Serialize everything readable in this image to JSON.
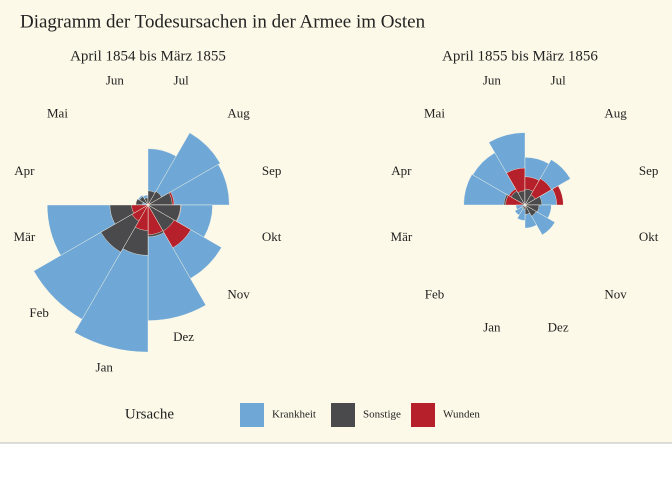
{
  "title": "Diagramm der Todesursachen in der Armee im Osten",
  "legend_title": "Ursache",
  "chart_data": [
    {
      "type": "rose",
      "subtitle": "April 1854 bis März 1855",
      "categories": [
        "Apr",
        "Mai",
        "Jun",
        "Jul",
        "Aug",
        "Sep",
        "Okt",
        "Nov",
        "Dez",
        "Jan",
        "Feb",
        "Mär"
      ],
      "series": [
        {
          "name": "Krankheit",
          "color": "#6fa8d6",
          "values": [
            1.4,
            6.2,
            4.7,
            150,
            328.5,
            312.2,
            197,
            340.6,
            631.5,
            1022.8,
            822.8,
            480.3
          ]
        },
        {
          "name": "Sonstige",
          "color": "#4a4a4d",
          "values": [
            7.0,
            4.6,
            2.5,
            9.6,
            11.9,
            27.7,
            50.1,
            42.8,
            48,
            120,
            140.1,
            68.6
          ]
        },
        {
          "name": "Wunden",
          "color": "#b5202a",
          "values": [
            0,
            0,
            0,
            0,
            0.4,
            32.1,
            51.7,
            115.8,
            41.7,
            30.7,
            16.3,
            12.8
          ]
        }
      ]
    },
    {
      "type": "rose",
      "subtitle": "April 1855 bis März 1856",
      "categories": [
        "Apr",
        "Mai",
        "Jun",
        "Jul",
        "Aug",
        "Sep",
        "Okt",
        "Nov",
        "Dez",
        "Jan",
        "Feb",
        "Mär"
      ],
      "series": [
        {
          "name": "Krankheit",
          "color": "#6fa8d6",
          "values": [
            177.5,
            171.8,
            247.6,
            107.5,
            129.9,
            47.5,
            32.8,
            56.4,
            25.3,
            11.4,
            6.6,
            3.9
          ]
        },
        {
          "name": "Sonstige",
          "color": "#4a4a4d",
          "values": [
            21.2,
            12.5,
            9.6,
            11.9,
            6.6,
            13.6,
            9.3,
            7.9,
            4.2,
            0.8,
            0.5,
            0
          ]
        },
        {
          "name": "Wunden",
          "color": "#b5202a",
          "values": [
            17.9,
            16.6,
            64.5,
            37.7,
            44.1,
            69.4,
            0,
            0,
            0,
            0,
            0,
            0
          ]
        }
      ]
    }
  ]
}
